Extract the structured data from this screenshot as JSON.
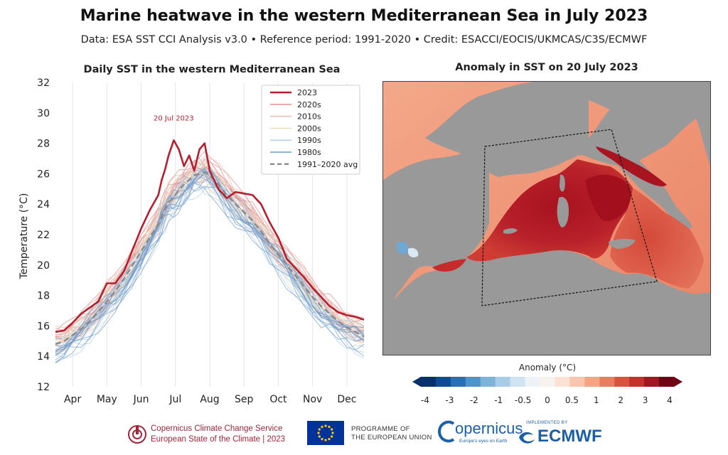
{
  "header": {
    "title": "Marine heatwave in the western Mediterranean Sea in July 2023",
    "subtitle": "Data: ESA SST CCI Analysis v3.0 • Reference period: 1991-2020 • Credit: ESACCI/EOCIS/UKMCAS/C3S/ECMWF"
  },
  "chart_data": [
    {
      "type": "line",
      "title": "Daily SST in the western Mediterranean Sea",
      "xlabel": "",
      "ylabel": "Temperature (°C)",
      "ylim": [
        12,
        32
      ],
      "yticks": [
        12,
        14,
        16,
        18,
        20,
        22,
        24,
        26,
        28,
        30,
        32
      ],
      "xlim": [
        0,
        9
      ],
      "months": [
        "Apr",
        "May",
        "Jun",
        "Jul",
        "Aug",
        "Sep",
        "Oct",
        "Nov",
        "Dec"
      ],
      "grid": "vertical",
      "legend_position": "top-right",
      "annotation": "20 Jul 2023",
      "x": [
        0.0,
        0.25,
        0.5,
        0.75,
        1.0,
        1.25,
        1.5,
        1.75,
        2.0,
        2.25,
        2.5,
        2.75,
        3.0,
        3.1,
        3.2,
        3.3,
        3.45,
        3.6,
        3.75,
        3.9,
        4.05,
        4.2,
        4.35,
        4.5,
        4.75,
        5.0,
        5.25,
        5.5,
        5.75,
        6.0,
        6.25,
        6.5,
        6.75,
        7.0,
        7.25,
        7.5,
        7.75,
        8.0,
        8.25,
        8.5,
        8.75,
        9.0
      ],
      "series": [
        {
          "name": "2023",
          "color": "#b51f2e",
          "width": 2.6,
          "values": [
            15.6,
            15.7,
            16.2,
            16.8,
            17.2,
            17.6,
            18.8,
            18.8,
            19.6,
            21.0,
            22.4,
            23.6,
            24.6,
            25.6,
            26.3,
            27.2,
            28.2,
            27.6,
            26.5,
            27.2,
            26.2,
            27.6,
            28.0,
            26.2,
            25.0,
            24.4,
            24.8,
            24.7,
            24.6,
            24.0,
            22.8,
            21.8,
            20.4,
            19.8,
            19.2,
            18.5,
            17.9,
            17.3,
            16.9,
            16.7,
            16.6,
            16.4
          ]
        },
        {
          "name": "2020s",
          "color": "#e08888",
          "width": 1.2
        },
        {
          "name": "2010s",
          "color": "#e9b6a4",
          "width": 1.2
        },
        {
          "name": "2000s",
          "color": "#efdab8",
          "width": 1.2
        },
        {
          "name": "1990s",
          "color": "#a9cbe8",
          "width": 1.2
        },
        {
          "name": "1980s",
          "color": "#6c9ac9",
          "width": 1.2
        },
        {
          "name": "1991–2020 avg",
          "color": "#8a8a8a",
          "width": 2.4,
          "dash": true,
          "values": [
            14.8,
            15.0,
            15.4,
            15.8,
            16.3,
            16.9,
            17.6,
            18.3,
            19.1,
            20.0,
            20.9,
            21.8,
            22.7,
            23.2,
            23.7,
            24.1,
            24.5,
            24.9,
            25.3,
            25.6,
            25.9,
            26.0,
            26.1,
            25.9,
            25.3,
            24.6,
            24.0,
            23.5,
            22.9,
            22.2,
            21.4,
            20.7,
            20.0,
            19.3,
            18.6,
            17.9,
            17.3,
            16.8,
            16.3,
            15.9,
            15.6,
            15.3
          ]
        }
      ]
    },
    {
      "type": "heatmap",
      "title": "Anomaly in SST on 20 July 2023",
      "colorbar_label": "Anomaly (°C)",
      "colorbar_ticks": [
        "-4",
        "-3",
        "-2",
        "-1",
        "-0.5",
        "0",
        "0.5",
        "1",
        "2",
        "3",
        "4"
      ],
      "colorbar_colors": [
        "#08306b",
        "#0f4c91",
        "#2a6fb4",
        "#4f93c8",
        "#7fb3d8",
        "#a8cde6",
        "#cfe3f0",
        "#eef2f6",
        "#f7f2ef",
        "#fbe2d4",
        "#f8c6ad",
        "#f3a584",
        "#e87e60",
        "#d9543f",
        "#c0322b",
        "#9e1821",
        "#6d0015"
      ]
    }
  ],
  "footer": {
    "c3s_line1": "Copernicus Climate Change Service",
    "c3s_line2": "European State of the Climate | 2023",
    "eu_line1": "PROGRAMME OF",
    "eu_line2": "THE EUROPEAN UNION",
    "copernicus": "opernicus",
    "copernicus_tagline": "Europe's eyes on Earth",
    "ecmwf_small": "IMPLEMENTED BY",
    "ecmwf": "ECMWF"
  }
}
